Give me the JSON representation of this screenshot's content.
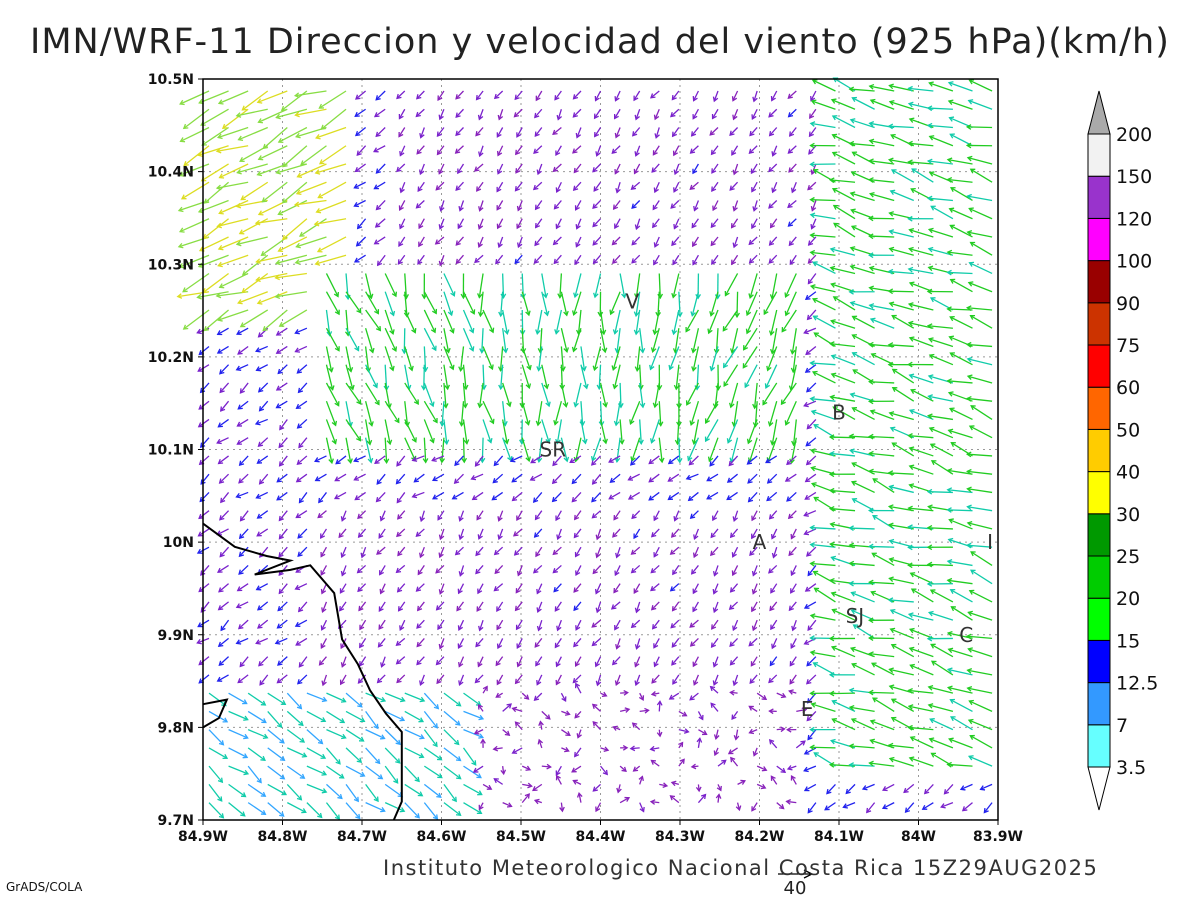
{
  "title": "IMN/WRF-11 Direccion y velocidad del viento (925 hPa)(km/h)",
  "credit": "Instituto Meteorologico Nacional Costa Rica 15Z29AUG2025",
  "software": "GrADS/COLA",
  "map": {
    "lon_range": [
      -84.9,
      -83.9
    ],
    "lat_range": [
      9.7,
      10.5
    ],
    "x_ticks": [
      "84.9W",
      "84.8W",
      "84.7W",
      "84.6W",
      "84.5W",
      "84.4W",
      "84.3W",
      "84.2W",
      "84.1W",
      "84W",
      "83.9W"
    ],
    "y_ticks": [
      "9.7N",
      "9.8N",
      "9.9N",
      "10N",
      "10.1N",
      "10.2N",
      "10.3N",
      "10.4N",
      "10.5N"
    ],
    "grid": true,
    "place_labels": [
      {
        "text": "V",
        "lon": -84.36,
        "lat": 10.26
      },
      {
        "text": "B",
        "lon": -84.1,
        "lat": 10.14
      },
      {
        "text": "SR",
        "lon": -84.46,
        "lat": 10.1
      },
      {
        "text": "A",
        "lon": -84.2,
        "lat": 10.0
      },
      {
        "text": "I",
        "lon": -83.91,
        "lat": 10.0
      },
      {
        "text": "SJ",
        "lon": -84.08,
        "lat": 9.92
      },
      {
        "text": "C",
        "lon": -83.94,
        "lat": 9.9
      },
      {
        "text": "E",
        "lon": -84.14,
        "lat": 9.82
      }
    ],
    "coastline": [
      [
        -84.9,
        10.02
      ],
      [
        -84.86,
        9.995
      ],
      [
        -84.82,
        9.985
      ],
      [
        -84.79,
        9.98
      ],
      [
        -84.835,
        9.965
      ],
      [
        -84.79,
        9.97
      ],
      [
        -84.765,
        9.975
      ],
      [
        -84.735,
        9.945
      ],
      [
        -84.725,
        9.895
      ],
      [
        -84.705,
        9.868
      ],
      [
        -84.69,
        9.84
      ],
      [
        -84.67,
        9.815
      ],
      [
        -84.65,
        9.795
      ],
      [
        -84.65,
        9.72
      ],
      [
        -84.66,
        9.7
      ]
    ],
    "peninsula_coast": [
      [
        -84.9,
        9.825
      ],
      [
        -84.87,
        9.83
      ],
      [
        -84.88,
        9.81
      ],
      [
        -84.9,
        9.8
      ]
    ]
  },
  "legend": {
    "labels": [
      "3.5",
      "7",
      "12.5",
      "15",
      "20",
      "25",
      "30",
      "40",
      "50",
      "60",
      "75",
      "90",
      "100",
      "120",
      "150",
      "200"
    ],
    "colors": [
      "#ffffff",
      "#66ffff",
      "#3399ff",
      "#0000ff",
      "#00ff00",
      "#00cc00",
      "#009900",
      "#ffff00",
      "#ffcc00",
      "#ff6600",
      "#ff0000",
      "#cc3300",
      "#990000",
      "#ff00ff",
      "#9933cc",
      "#f2f2f2",
      "#aaaaaa"
    ]
  },
  "reference_vector": {
    "label": "40"
  }
}
